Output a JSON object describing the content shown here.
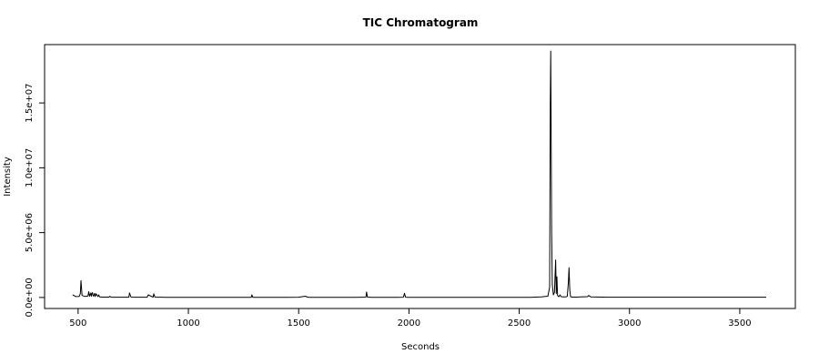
{
  "chart_data": {
    "type": "line",
    "title": "TIC Chromatogram",
    "xlabel": "Seconds",
    "ylabel": "Intensity",
    "xlim": [
      348,
      3752
    ],
    "ylim": [
      -850000,
      19500000
    ],
    "x_ticks": [
      500,
      1000,
      1500,
      2000,
      2500,
      3000,
      3500
    ],
    "x_tick_labels": [
      "500",
      "1000",
      "1500",
      "2000",
      "2500",
      "3000",
      "3500"
    ],
    "y_ticks": [
      0,
      5000000,
      10000000,
      15000000
    ],
    "y_tick_labels": [
      "0.0e+00",
      "5.0e+06",
      "1.0e+07",
      "1.5e+07"
    ],
    "grid": false,
    "series": [
      {
        "x": [
          475,
          490,
          505,
          510,
          513,
          518,
          530,
          545,
          548,
          552,
          558,
          560,
          564,
          570,
          575,
          578,
          582,
          590,
          593,
          598,
          610,
          640,
          643,
          650,
          700,
          730,
          733,
          740,
          760,
          790,
          800,
          813,
          818,
          840,
          843,
          848,
          870,
          880,
          900,
          950,
          1000,
          1050,
          1100,
          1150,
          1200,
          1250,
          1285,
          1288,
          1292,
          1320,
          1350,
          1400,
          1450,
          1500,
          1530,
          1540,
          1550,
          1600,
          1650,
          1700,
          1750,
          1790,
          1805,
          1808,
          1812,
          1830,
          1850,
          1900,
          1950,
          1975,
          1980,
          1985,
          2000,
          2050,
          2100,
          2150,
          2200,
          2250,
          2300,
          2350,
          2400,
          2450,
          2500,
          2550,
          2600,
          2630,
          2638,
          2641,
          2643,
          2645,
          2647,
          2650,
          2655,
          2660,
          2665,
          2668,
          2671,
          2674,
          2677,
          2680,
          2685,
          2690,
          2700,
          2705,
          2710,
          2718,
          2723,
          2726,
          2729,
          2733,
          2740,
          2760,
          2780,
          2810,
          2815,
          2825,
          2900,
          3000,
          3100,
          3200,
          3300,
          3400,
          3500,
          3620
        ],
        "y": [
          200000,
          70000,
          80000,
          300000,
          1300000,
          150000,
          80000,
          120000,
          450000,
          100000,
          350000,
          90000,
          380000,
          90000,
          320000,
          70000,
          280000,
          60000,
          200000,
          40000,
          30000,
          30000,
          90000,
          20000,
          20000,
          20000,
          350000,
          25000,
          20000,
          20000,
          20000,
          20000,
          200000,
          20000,
          280000,
          25000,
          20000,
          20000,
          15000,
          15000,
          10000,
          10000,
          10000,
          10000,
          10000,
          10000,
          10000,
          200000,
          15000,
          10000,
          10000,
          10000,
          10000,
          20000,
          100000,
          30000,
          15000,
          10000,
          10000,
          10000,
          10000,
          20000,
          30000,
          420000,
          30000,
          10000,
          10000,
          10000,
          10000,
          20000,
          330000,
          20000,
          10000,
          5000,
          5000,
          5000,
          5000,
          5000,
          5000,
          5000,
          5000,
          10000,
          10000,
          10000,
          50000,
          100000,
          800000,
          15000000,
          19000000,
          12000000,
          5000000,
          1000000,
          200000,
          400000,
          2900000,
          300000,
          1600000,
          150000,
          80000,
          60000,
          200000,
          60000,
          50000,
          40000,
          40000,
          80000,
          1200000,
          2300000,
          600000,
          60000,
          30000,
          30000,
          50000,
          60000,
          150000,
          40000,
          20000,
          20000,
          20000,
          20000,
          20000,
          20000,
          20000,
          20000
        ]
      }
    ]
  }
}
